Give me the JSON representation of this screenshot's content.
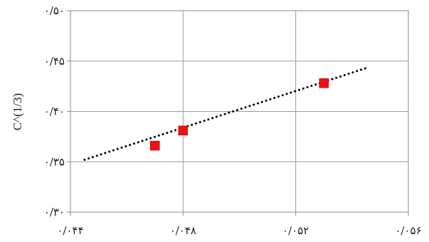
{
  "chart_data": {
    "type": "scatter",
    "title": "",
    "xlabel": "",
    "ylabel": "C^(1/3)",
    "xlim": [
      0.044,
      0.056
    ],
    "ylim": [
      0.3,
      0.5
    ],
    "x_ticks": [
      0.044,
      0.048,
      0.052,
      0.056
    ],
    "y_ticks": [
      0.3,
      0.35,
      0.4,
      0.45,
      0.5
    ],
    "x_tick_labels": [
      "۰/۰۴۴",
      "۰/۰۴۸",
      "۰/۰۵۲",
      "۰/۰۵۶"
    ],
    "y_tick_labels": [
      "۰/۳۰",
      "۰/۳۵",
      "۰/۴۰",
      "۰/۴۵",
      "۰/۵۰"
    ],
    "grid": true,
    "legend": "none",
    "series": [
      {
        "marker": "square",
        "color": "#ee1111",
        "points": [
          {
            "x": 0.047,
            "y": 0.366
          },
          {
            "x": 0.048,
            "y": 0.381
          },
          {
            "x": 0.053,
            "y": 0.428
          }
        ]
      }
    ],
    "trendline": {
      "style": "dotted",
      "color": "#000000",
      "x": [
        0.0445,
        0.0545
      ],
      "y": [
        0.352,
        0.443
      ]
    }
  }
}
